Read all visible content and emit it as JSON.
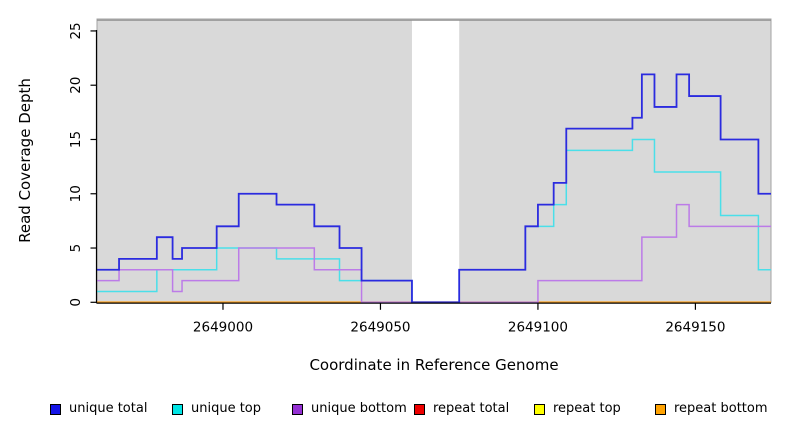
{
  "chart_data": {
    "type": "line",
    "subtype": "step",
    "title": "",
    "xlabel": "Coordinate in Reference Genome",
    "ylabel": "Read Coverage Depth",
    "xlim": [
      2648960,
      2649174
    ],
    "ylim": [
      0,
      26.1
    ],
    "x_ticks": [
      2649000,
      2649050,
      2649100,
      2649150
    ],
    "x_tick_labels": [
      "2649000",
      "2649050",
      "2649100",
      "2649150"
    ],
    "y_ticks": [
      0,
      5,
      10,
      15,
      20,
      25
    ],
    "y_tick_labels": [
      "0",
      "5",
      "10",
      "15",
      "20",
      "25"
    ],
    "grid": false,
    "panel_background": "#D9D9D9",
    "gap_region": {
      "x_start": 2649060,
      "x_end": 2649075,
      "color": "#FFFFFF"
    },
    "legend_position": "bottom",
    "series": [
      {
        "name": "unique total",
        "legend_color": "#1414E8",
        "line_color": "#2B2BDF",
        "x_end": 2649174,
        "steps": [
          [
            2648960,
            3
          ],
          [
            2648967,
            4
          ],
          [
            2648979,
            6
          ],
          [
            2648984,
            4
          ],
          [
            2648987,
            5
          ],
          [
            2648998,
            7
          ],
          [
            2649005,
            10
          ],
          [
            2649017,
            9
          ],
          [
            2649029,
            7
          ],
          [
            2649037,
            5
          ],
          [
            2649044,
            2
          ],
          [
            2649060,
            0
          ],
          [
            2649075,
            3
          ],
          [
            2649096,
            7
          ],
          [
            2649100,
            9
          ],
          [
            2649105,
            11
          ],
          [
            2649109,
            16
          ],
          [
            2649130,
            17
          ],
          [
            2649133,
            21
          ],
          [
            2649137,
            18
          ],
          [
            2649144,
            21
          ],
          [
            2649148,
            19
          ],
          [
            2649158,
            15
          ],
          [
            2649170,
            10
          ]
        ]
      },
      {
        "name": "unique top",
        "legend_color": "#00E5E5",
        "line_color": "#4ADFE9",
        "x_end": 2649174,
        "steps": [
          [
            2648960,
            1
          ],
          [
            2648979,
            3
          ],
          [
            2648998,
            5
          ],
          [
            2649017,
            4
          ],
          [
            2649037,
            2
          ],
          [
            2649060,
            0
          ],
          [
            2649075,
            3
          ],
          [
            2649096,
            7
          ],
          [
            2649105,
            9
          ],
          [
            2649109,
            14
          ],
          [
            2649130,
            15
          ],
          [
            2649137,
            12
          ],
          [
            2649158,
            8
          ],
          [
            2649170,
            3
          ]
        ]
      },
      {
        "name": "unique bottom",
        "legend_color": "#9430D3",
        "line_color": "#BC7BE8",
        "x_end": 2649174,
        "steps": [
          [
            2648960,
            2
          ],
          [
            2648967,
            3
          ],
          [
            2648984,
            1
          ],
          [
            2648987,
            2
          ],
          [
            2649005,
            5
          ],
          [
            2649029,
            3
          ],
          [
            2649044,
            0
          ],
          [
            2649100,
            2
          ],
          [
            2649133,
            6
          ],
          [
            2649144,
            9
          ],
          [
            2649148,
            7
          ]
        ]
      },
      {
        "name": "repeat total",
        "legend_color": "#EE0000",
        "line_color": "#EE2222",
        "x_end": 2649174,
        "steps": [
          [
            2648960,
            0
          ]
        ]
      },
      {
        "name": "repeat top",
        "legend_color": "#FFFF00",
        "line_color": "#FFFF33",
        "x_end": 2649174,
        "steps": [
          [
            2648960,
            0
          ]
        ]
      },
      {
        "name": "repeat bottom",
        "legend_color": "#FFA303",
        "line_color": "#FFA21E",
        "x_end": 2649174,
        "steps": [
          [
            2648960,
            0
          ]
        ]
      }
    ]
  }
}
